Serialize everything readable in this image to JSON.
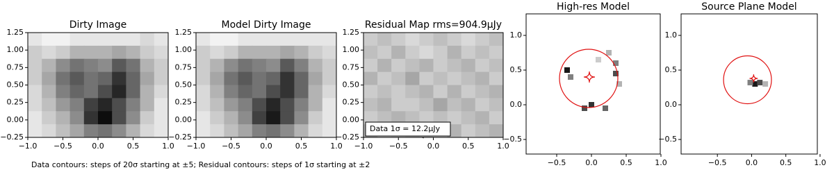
{
  "chart_data": [
    {
      "type": "heatmap",
      "title": "Dirty Image",
      "xlim": [
        -1.0,
        1.0
      ],
      "ylim": [
        -0.25,
        1.25
      ],
      "xticks": [
        {
          "value": -1.0,
          "label": "−1.0"
        },
        {
          "value": -0.5,
          "label": "−0.5"
        },
        {
          "value": 0.0,
          "label": "0.0"
        },
        {
          "value": 0.5,
          "label": "0.5"
        },
        {
          "value": 1.0,
          "label": "1.0"
        }
      ],
      "yticks": [
        {
          "value": -0.25,
          "label": "−0.25"
        },
        {
          "value": 0.0,
          "label": "0.00"
        },
        {
          "value": 0.25,
          "label": "0.25"
        },
        {
          "value": 0.5,
          "label": "0.50"
        },
        {
          "value": 0.75,
          "label": "0.75"
        },
        {
          "value": 1.0,
          "label": "1.00"
        },
        {
          "value": 1.25,
          "label": "1.25"
        }
      ],
      "values": [
        [
          0.1,
          0.05,
          0.05,
          0.1,
          0.1,
          0.1,
          0.1,
          0.1,
          0.15,
          0.1
        ],
        [
          0.2,
          0.15,
          0.2,
          0.3,
          0.3,
          0.3,
          0.35,
          0.3,
          0.2,
          0.15
        ],
        [
          0.2,
          0.3,
          0.45,
          0.55,
          0.5,
          0.45,
          0.65,
          0.55,
          0.3,
          0.2
        ],
        [
          0.2,
          0.35,
          0.55,
          0.65,
          0.55,
          0.6,
          0.8,
          0.6,
          0.35,
          0.2
        ],
        [
          0.15,
          0.3,
          0.5,
          0.6,
          0.55,
          0.7,
          0.85,
          0.6,
          0.3,
          0.15
        ],
        [
          0.15,
          0.25,
          0.4,
          0.5,
          0.75,
          0.85,
          0.7,
          0.5,
          0.3,
          0.1
        ],
        [
          0.1,
          0.2,
          0.3,
          0.45,
          0.8,
          0.95,
          0.7,
          0.45,
          0.2,
          0.1
        ],
        [
          0.1,
          0.15,
          0.25,
          0.35,
          0.5,
          0.55,
          0.45,
          0.3,
          0.15,
          0.1
        ]
      ]
    },
    {
      "type": "heatmap",
      "title": "Model Dirty Image",
      "xlim": [
        -1.0,
        1.0
      ],
      "ylim": [
        -0.25,
        1.25
      ],
      "xticks": [
        {
          "value": -1.0,
          "label": "−1.0"
        },
        {
          "value": -0.5,
          "label": "−0.5"
        },
        {
          "value": 0.0,
          "label": "0.0"
        },
        {
          "value": 0.5,
          "label": "0.5"
        },
        {
          "value": 1.0,
          "label": "1.0"
        }
      ],
      "yticks": [
        {
          "value": -0.25,
          "label": "−0.25"
        },
        {
          "value": 0.0,
          "label": "0.00"
        },
        {
          "value": 0.25,
          "label": "0.25"
        },
        {
          "value": 0.5,
          "label": "0.50"
        },
        {
          "value": 0.75,
          "label": "0.75"
        },
        {
          "value": 1.0,
          "label": "1.00"
        },
        {
          "value": 1.25,
          "label": "1.25"
        }
      ],
      "values": [
        [
          0.1,
          0.05,
          0.05,
          0.1,
          0.1,
          0.1,
          0.1,
          0.1,
          0.1,
          0.1
        ],
        [
          0.2,
          0.15,
          0.2,
          0.3,
          0.3,
          0.3,
          0.35,
          0.3,
          0.2,
          0.15
        ],
        [
          0.2,
          0.3,
          0.45,
          0.55,
          0.5,
          0.45,
          0.65,
          0.5,
          0.3,
          0.2
        ],
        [
          0.2,
          0.35,
          0.55,
          0.65,
          0.55,
          0.6,
          0.8,
          0.6,
          0.35,
          0.2
        ],
        [
          0.15,
          0.3,
          0.5,
          0.6,
          0.55,
          0.7,
          0.8,
          0.6,
          0.3,
          0.15
        ],
        [
          0.15,
          0.25,
          0.4,
          0.5,
          0.7,
          0.85,
          0.7,
          0.5,
          0.3,
          0.1
        ],
        [
          0.1,
          0.2,
          0.3,
          0.45,
          0.75,
          0.9,
          0.7,
          0.45,
          0.2,
          0.1
        ],
        [
          0.1,
          0.15,
          0.25,
          0.35,
          0.5,
          0.55,
          0.45,
          0.3,
          0.15,
          0.1
        ]
      ]
    },
    {
      "type": "heatmap",
      "title": "Residual Map rms=904.9μJy",
      "annotation": "Data 1σ = 12.2μJy",
      "xlim": [
        -1.0,
        1.0
      ],
      "ylim": [
        -0.25,
        1.25
      ],
      "xticks": [
        {
          "value": -1.0,
          "label": "−1.0"
        },
        {
          "value": -0.5,
          "label": "−0.5"
        },
        {
          "value": 0.0,
          "label": "0.0"
        },
        {
          "value": 0.5,
          "label": "0.5"
        },
        {
          "value": 1.0,
          "label": "1.0"
        }
      ],
      "yticks": [
        {
          "value": -0.25,
          "label": "−0.25"
        },
        {
          "value": 0.0,
          "label": "0.00"
        },
        {
          "value": 0.25,
          "label": "0.25"
        },
        {
          "value": 0.5,
          "label": "0.50"
        },
        {
          "value": 0.75,
          "label": "0.75"
        },
        {
          "value": 1.0,
          "label": "1.00"
        },
        {
          "value": 1.25,
          "label": "1.25"
        }
      ],
      "values": [
        [
          0.2,
          0.25,
          0.2,
          0.15,
          0.2,
          0.25,
          0.2,
          0.15,
          0.2,
          0.25
        ],
        [
          0.25,
          0.2,
          0.3,
          0.2,
          0.15,
          0.2,
          0.3,
          0.2,
          0.25,
          0.2
        ],
        [
          0.2,
          0.3,
          0.2,
          0.25,
          0.3,
          0.2,
          0.25,
          0.3,
          0.2,
          0.25
        ],
        [
          0.3,
          0.2,
          0.25,
          0.35,
          0.2,
          0.25,
          0.2,
          0.25,
          0.3,
          0.2
        ],
        [
          0.2,
          0.25,
          0.2,
          0.25,
          0.3,
          0.2,
          0.3,
          0.2,
          0.25,
          0.3
        ],
        [
          0.25,
          0.3,
          0.2,
          0.2,
          0.25,
          0.35,
          0.25,
          0.3,
          0.2,
          0.25
        ],
        [
          0.2,
          0.25,
          0.3,
          0.25,
          0.2,
          0.25,
          0.2,
          0.25,
          0.3,
          0.2
        ],
        [
          0.3,
          0.2,
          0.25,
          0.3,
          0.25,
          0.2,
          0.3,
          0.2,
          0.25,
          0.3
        ]
      ]
    },
    {
      "type": "pixel-map",
      "title": "High-res Model",
      "xlim": [
        -0.94,
        0.99
      ],
      "ylim": [
        -0.71,
        1.31
      ],
      "xticks": [
        {
          "value": -0.5,
          "label": "−0.5"
        },
        {
          "value": 0.0,
          "label": "0.0"
        },
        {
          "value": 0.5,
          "label": "0.5"
        },
        {
          "value": 1.0,
          "label": "1.0"
        }
      ],
      "yticks": [
        {
          "value": -0.5,
          "label": "−0.5"
        },
        {
          "value": 0.0,
          "label": "0.0"
        },
        {
          "value": 0.5,
          "label": "0.5"
        },
        {
          "value": 1.0,
          "label": "1.0"
        }
      ],
      "x": [
        -0.35,
        -0.3,
        0.25,
        0.35,
        0.35,
        0.4,
        0.2,
        0.0,
        -0.1,
        0.1
      ],
      "y": [
        0.5,
        0.4,
        0.75,
        0.6,
        0.45,
        0.3,
        -0.05,
        0.0,
        -0.05,
        0.65
      ],
      "values": [
        0.9,
        0.5,
        0.3,
        0.5,
        0.7,
        0.3,
        0.6,
        0.8,
        0.7,
        0.2
      ],
      "critical_curve": {
        "x": -0.04,
        "y": 0.38,
        "r": 0.42,
        "color": "#e01010"
      },
      "caustic": {
        "x": -0.03,
        "y": 0.4,
        "size": 0.08
      }
    },
    {
      "type": "pixel-map",
      "title": "Source Plane Model",
      "xlim": [
        -1.03,
        0.96
      ],
      "ylim": [
        -0.71,
        1.31
      ],
      "xticks": [
        {
          "value": -0.5,
          "label": "−0.5"
        },
        {
          "value": 0.0,
          "label": "0.0"
        },
        {
          "value": 0.5,
          "label": "0.5"
        },
        {
          "value": 1.0,
          "label": "1.0"
        }
      ],
      "yticks": [
        {
          "value": -0.5,
          "label": "−0.5"
        },
        {
          "value": 0.0,
          "label": "0.0"
        },
        {
          "value": 0.5,
          "label": "0.5"
        },
        {
          "value": 1.0,
          "label": "1.0"
        }
      ],
      "x": [
        0.05,
        0.12,
        -0.02,
        0.2
      ],
      "y": [
        0.3,
        0.32,
        0.32,
        0.3
      ],
      "values": [
        0.9,
        0.7,
        0.5,
        0.3
      ],
      "critical_curve": {
        "x": -0.06,
        "y": 0.36,
        "r": 0.35,
        "color": "#e01010"
      },
      "caustic": {
        "x": 0.03,
        "y": 0.38,
        "size": 0.06
      }
    }
  ],
  "footnote": "Data contours: steps of 20σ starting at ±5; Residual contours: steps of 1σ starting at ±2"
}
